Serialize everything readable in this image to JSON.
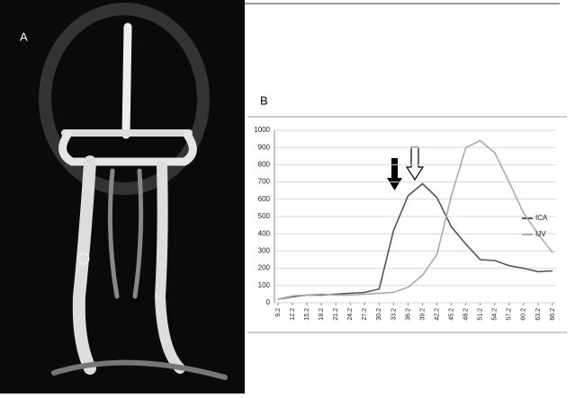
{
  "panel_a_label": "A",
  "panel_b_label": "B",
  "chart_data": {
    "type": "line",
    "categories": [
      "9.2",
      "12.2",
      "15.2",
      "18.2",
      "21.2",
      "24.2",
      "27.2",
      "30.2",
      "33.2",
      "36.2",
      "39.2",
      "42.2",
      "45.2",
      "48.2",
      "51.2",
      "54.2",
      "57.2",
      "60.2",
      "63.2",
      "66.2"
    ],
    "series": [
      {
        "name": "ICA",
        "color": "#555555",
        "values": [
          20,
          35,
          45,
          45,
          50,
          55,
          60,
          80,
          420,
          620,
          690,
          610,
          440,
          340,
          250,
          245,
          215,
          200,
          180,
          185
        ]
      },
      {
        "name": "IJV",
        "color": "#aaaaaa",
        "values": [
          20,
          40,
          45,
          50,
          45,
          45,
          50,
          55,
          60,
          90,
          160,
          280,
          620,
          900,
          940,
          870,
          700,
          520,
          400,
          290
        ]
      }
    ],
    "ylim": [
      0,
      1000
    ],
    "yticks": [
      0,
      100,
      200,
      300,
      400,
      500,
      600,
      700,
      800,
      900,
      1000
    ],
    "grid": true,
    "legend": "right"
  }
}
